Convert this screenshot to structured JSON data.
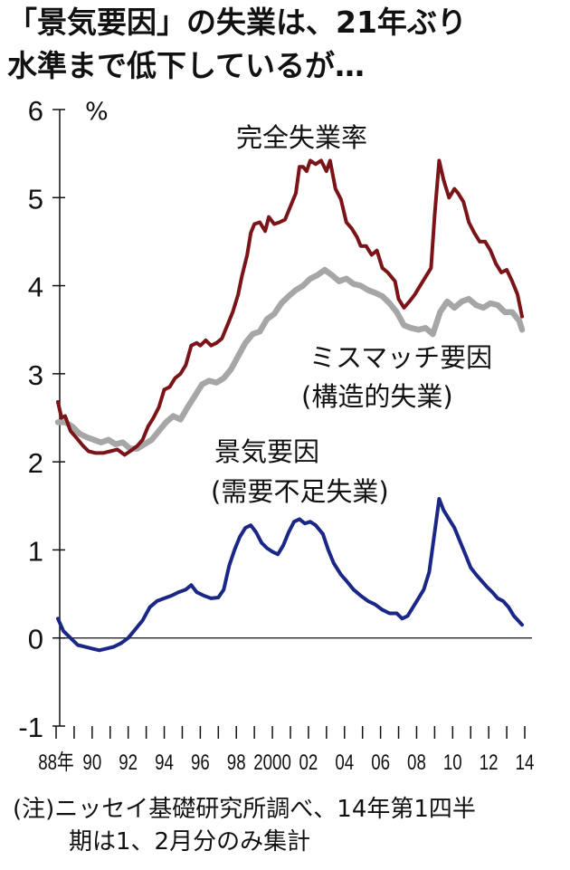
{
  "title_line1": "「景気要因」の失業は、21年ぶり",
  "title_line2": "水準まで低下しているが…",
  "footnote_line1": "(注)ニッセイ基礎研究所調べ、14年第1四半",
  "footnote_line2": "期は1、2月分のみ集計",
  "chart_data": {
    "type": "line",
    "title": "「景気要因」の失業は、21年ぶり水準まで低下しているが…",
    "ylabel": "%",
    "ylim": [
      -1,
      6
    ],
    "xlim": [
      1988,
      2014
    ],
    "y_ticks": [
      "-1",
      "0",
      "1",
      "2",
      "3",
      "4",
      "5",
      "6"
    ],
    "x_ticks": [
      {
        "label": "88年",
        "year": 1988
      },
      {
        "label": "90",
        "year": 1990
      },
      {
        "label": "92",
        "year": 1992
      },
      {
        "label": "94",
        "year": 1994
      },
      {
        "label": "96",
        "year": 1996
      },
      {
        "label": "98",
        "year": 1998
      },
      {
        "label": "2000",
        "year": 2000
      },
      {
        "label": "02",
        "year": 2002
      },
      {
        "label": "04",
        "year": 2004
      },
      {
        "label": "06",
        "year": 2006
      },
      {
        "label": "08",
        "year": 2008
      },
      {
        "label": "10",
        "year": 2010
      },
      {
        "label": "12",
        "year": 2012
      },
      {
        "label": "14",
        "year": 2014
      }
    ],
    "series": [
      {
        "name": "完全失業率",
        "label_lines": [
          "完全失業率"
        ],
        "color": "#7a1418",
        "points": [
          [
            1988.1,
            2.68
          ],
          [
            1988.3,
            2.5
          ],
          [
            1988.5,
            2.52
          ],
          [
            1988.8,
            2.35
          ],
          [
            1989.1,
            2.28
          ],
          [
            1989.5,
            2.18
          ],
          [
            1989.8,
            2.12
          ],
          [
            1990.2,
            2.1
          ],
          [
            1990.6,
            2.1
          ],
          [
            1991.0,
            2.12
          ],
          [
            1991.4,
            2.14
          ],
          [
            1991.8,
            2.08
          ],
          [
            1992.1,
            2.12
          ],
          [
            1992.5,
            2.18
          ],
          [
            1992.8,
            2.25
          ],
          [
            1993.1,
            2.4
          ],
          [
            1993.4,
            2.5
          ],
          [
            1993.7,
            2.62
          ],
          [
            1994.0,
            2.82
          ],
          [
            1994.3,
            2.85
          ],
          [
            1994.6,
            2.95
          ],
          [
            1994.9,
            3.0
          ],
          [
            1995.2,
            3.1
          ],
          [
            1995.5,
            3.32
          ],
          [
            1995.8,
            3.35
          ],
          [
            1996.0,
            3.32
          ],
          [
            1996.3,
            3.38
          ],
          [
            1996.6,
            3.32
          ],
          [
            1996.9,
            3.35
          ],
          [
            1997.2,
            3.4
          ],
          [
            1997.5,
            3.55
          ],
          [
            1997.8,
            3.7
          ],
          [
            1998.1,
            3.9
          ],
          [
            1998.3,
            4.1
          ],
          [
            1998.6,
            4.35
          ],
          [
            1998.8,
            4.6
          ],
          [
            1999.0,
            4.7
          ],
          [
            1999.3,
            4.72
          ],
          [
            1999.6,
            4.62
          ],
          [
            1999.8,
            4.78
          ],
          [
            2000.1,
            4.7
          ],
          [
            2000.4,
            4.72
          ],
          [
            2000.7,
            4.75
          ],
          [
            2001.0,
            4.9
          ],
          [
            2001.3,
            5.05
          ],
          [
            2001.5,
            5.35
          ],
          [
            2001.7,
            5.35
          ],
          [
            2001.9,
            5.3
          ],
          [
            2002.1,
            5.42
          ],
          [
            2002.4,
            5.38
          ],
          [
            2002.7,
            5.42
          ],
          [
            2003.0,
            5.3
          ],
          [
            2003.2,
            5.42
          ],
          [
            2003.5,
            5.1
          ],
          [
            2003.8,
            4.98
          ],
          [
            2004.1,
            4.72
          ],
          [
            2004.4,
            4.65
          ],
          [
            2004.7,
            4.55
          ],
          [
            2004.9,
            4.45
          ],
          [
            2005.2,
            4.45
          ],
          [
            2005.5,
            4.35
          ],
          [
            2005.8,
            4.4
          ],
          [
            2006.1,
            4.2
          ],
          [
            2006.4,
            4.15
          ],
          [
            2006.8,
            4.05
          ],
          [
            2007.0,
            3.85
          ],
          [
            2007.3,
            3.75
          ],
          [
            2007.6,
            3.82
          ],
          [
            2007.9,
            3.9
          ],
          [
            2008.2,
            4.0
          ],
          [
            2008.5,
            4.1
          ],
          [
            2008.8,
            4.2
          ],
          [
            2009.0,
            4.8
          ],
          [
            2009.25,
            5.42
          ],
          [
            2009.5,
            5.2
          ],
          [
            2009.8,
            5.0
          ],
          [
            2010.1,
            5.1
          ],
          [
            2010.3,
            5.05
          ],
          [
            2010.6,
            4.95
          ],
          [
            2010.9,
            4.72
          ],
          [
            2011.2,
            4.6
          ],
          [
            2011.5,
            4.5
          ],
          [
            2011.8,
            4.5
          ],
          [
            2012.1,
            4.4
          ],
          [
            2012.4,
            4.25
          ],
          [
            2012.7,
            4.15
          ],
          [
            2013.0,
            4.18
          ],
          [
            2013.3,
            4.05
          ],
          [
            2013.6,
            3.9
          ],
          [
            2013.85,
            3.65
          ]
        ]
      },
      {
        "name": "ミスマッチ要因(構造的失業)",
        "label_lines": [
          "ミスマッチ要因",
          "(構造的失業)"
        ],
        "color": "#a6a6a6",
        "points": [
          [
            1988.1,
            2.45
          ],
          [
            1988.5,
            2.45
          ],
          [
            1988.9,
            2.4
          ],
          [
            1989.3,
            2.32
          ],
          [
            1989.7,
            2.28
          ],
          [
            1990.1,
            2.25
          ],
          [
            1990.5,
            2.22
          ],
          [
            1990.9,
            2.25
          ],
          [
            1991.3,
            2.2
          ],
          [
            1991.7,
            2.22
          ],
          [
            1992.1,
            2.15
          ],
          [
            1992.5,
            2.15
          ],
          [
            1992.9,
            2.2
          ],
          [
            1993.3,
            2.25
          ],
          [
            1993.7,
            2.35
          ],
          [
            1994.1,
            2.45
          ],
          [
            1994.5,
            2.52
          ],
          [
            1994.9,
            2.48
          ],
          [
            1995.3,
            2.62
          ],
          [
            1995.7,
            2.75
          ],
          [
            1996.1,
            2.88
          ],
          [
            1996.5,
            2.92
          ],
          [
            1996.9,
            2.9
          ],
          [
            1997.3,
            2.95
          ],
          [
            1997.7,
            3.05
          ],
          [
            1998.1,
            3.2
          ],
          [
            1998.5,
            3.35
          ],
          [
            1998.9,
            3.45
          ],
          [
            1999.3,
            3.48
          ],
          [
            1999.7,
            3.62
          ],
          [
            2000.1,
            3.68
          ],
          [
            2000.5,
            3.8
          ],
          [
            2000.9,
            3.88
          ],
          [
            2001.3,
            3.95
          ],
          [
            2001.7,
            4.0
          ],
          [
            2002.1,
            4.08
          ],
          [
            2002.5,
            4.12
          ],
          [
            2002.9,
            4.18
          ],
          [
            2003.3,
            4.12
          ],
          [
            2003.7,
            4.05
          ],
          [
            2004.1,
            4.08
          ],
          [
            2004.5,
            4.02
          ],
          [
            2004.9,
            4.0
          ],
          [
            2005.3,
            3.95
          ],
          [
            2005.7,
            3.92
          ],
          [
            2006.1,
            3.88
          ],
          [
            2006.5,
            3.8
          ],
          [
            2006.9,
            3.7
          ],
          [
            2007.3,
            3.55
          ],
          [
            2007.7,
            3.52
          ],
          [
            2008.1,
            3.5
          ],
          [
            2008.5,
            3.52
          ],
          [
            2008.9,
            3.45
          ],
          [
            2009.3,
            3.7
          ],
          [
            2009.7,
            3.82
          ],
          [
            2010.1,
            3.75
          ],
          [
            2010.5,
            3.82
          ],
          [
            2010.9,
            3.85
          ],
          [
            2011.3,
            3.78
          ],
          [
            2011.7,
            3.75
          ],
          [
            2012.1,
            3.8
          ],
          [
            2012.5,
            3.78
          ],
          [
            2012.9,
            3.7
          ],
          [
            2013.3,
            3.7
          ],
          [
            2013.7,
            3.6
          ],
          [
            2013.85,
            3.5
          ]
        ]
      },
      {
        "name": "景気要因(需要不足失業)",
        "label_lines": [
          "景気要因",
          "(需要不足失業)"
        ],
        "color": "#1a2787",
        "points": [
          [
            1988.1,
            0.22
          ],
          [
            1988.4,
            0.08
          ],
          [
            1988.8,
            0.0
          ],
          [
            1989.2,
            -0.08
          ],
          [
            1989.6,
            -0.1
          ],
          [
            1990.0,
            -0.12
          ],
          [
            1990.4,
            -0.14
          ],
          [
            1990.8,
            -0.12
          ],
          [
            1991.2,
            -0.1
          ],
          [
            1991.6,
            -0.06
          ],
          [
            1992.0,
            0.0
          ],
          [
            1992.4,
            0.1
          ],
          [
            1992.8,
            0.2
          ],
          [
            1993.2,
            0.35
          ],
          [
            1993.6,
            0.42
          ],
          [
            1994.0,
            0.45
          ],
          [
            1994.4,
            0.48
          ],
          [
            1994.8,
            0.52
          ],
          [
            1995.2,
            0.55
          ],
          [
            1995.5,
            0.6
          ],
          [
            1995.8,
            0.52
          ],
          [
            1996.2,
            0.48
          ],
          [
            1996.6,
            0.45
          ],
          [
            1997.0,
            0.46
          ],
          [
            1997.3,
            0.55
          ],
          [
            1997.6,
            0.82
          ],
          [
            1997.9,
            1.0
          ],
          [
            1998.2,
            1.15
          ],
          [
            1998.5,
            1.25
          ],
          [
            1998.8,
            1.28
          ],
          [
            1999.1,
            1.2
          ],
          [
            1999.4,
            1.08
          ],
          [
            1999.7,
            1.02
          ],
          [
            2000.0,
            0.98
          ],
          [
            2000.3,
            0.95
          ],
          [
            2000.6,
            1.05
          ],
          [
            2000.9,
            1.2
          ],
          [
            2001.2,
            1.32
          ],
          [
            2001.5,
            1.35
          ],
          [
            2001.8,
            1.3
          ],
          [
            2002.1,
            1.32
          ],
          [
            2002.4,
            1.28
          ],
          [
            2002.8,
            1.18
          ],
          [
            2003.1,
            1.0
          ],
          [
            2003.4,
            0.85
          ],
          [
            2003.8,
            0.72
          ],
          [
            2004.1,
            0.65
          ],
          [
            2004.5,
            0.55
          ],
          [
            2004.9,
            0.48
          ],
          [
            2005.3,
            0.42
          ],
          [
            2005.7,
            0.38
          ],
          [
            2006.1,
            0.32
          ],
          [
            2006.5,
            0.28
          ],
          [
            2006.9,
            0.28
          ],
          [
            2007.2,
            0.22
          ],
          [
            2007.5,
            0.25
          ],
          [
            2007.8,
            0.35
          ],
          [
            2008.1,
            0.45
          ],
          [
            2008.4,
            0.55
          ],
          [
            2008.7,
            0.75
          ],
          [
            2008.9,
            1.05
          ],
          [
            2009.1,
            1.35
          ],
          [
            2009.25,
            1.58
          ],
          [
            2009.5,
            1.45
          ],
          [
            2009.8,
            1.35
          ],
          [
            2010.1,
            1.25
          ],
          [
            2010.4,
            1.1
          ],
          [
            2010.7,
            0.95
          ],
          [
            2011.0,
            0.8
          ],
          [
            2011.3,
            0.72
          ],
          [
            2011.6,
            0.65
          ],
          [
            2011.9,
            0.58
          ],
          [
            2012.2,
            0.52
          ],
          [
            2012.5,
            0.45
          ],
          [
            2012.8,
            0.42
          ],
          [
            2013.1,
            0.35
          ],
          [
            2013.4,
            0.25
          ],
          [
            2013.85,
            0.15
          ]
        ]
      }
    ]
  }
}
